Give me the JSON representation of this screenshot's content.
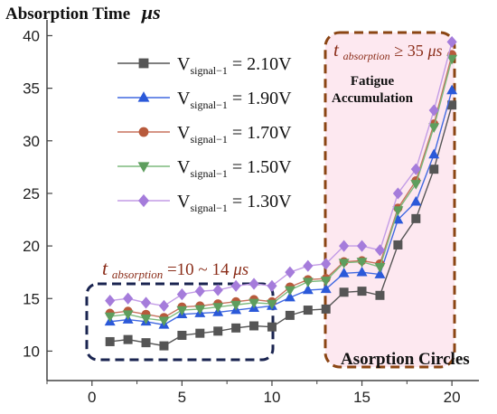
{
  "chart_data": {
    "type": "line",
    "title": "",
    "ylabel": "Absorption Time",
    "ylabel_unit": "μs",
    "xlabel": "Asorption Circles",
    "xlim": [
      -2.5,
      21.5
    ],
    "ylim": [
      7.2,
      41.5
    ],
    "xticks": [
      0,
      5,
      10,
      15,
      20
    ],
    "yticks": [
      10,
      15,
      20,
      25,
      30,
      35,
      40
    ],
    "x": [
      1,
      2,
      3,
      4,
      5,
      6,
      7,
      8,
      9,
      10,
      11,
      12,
      13,
      14,
      15,
      16,
      17,
      18,
      19,
      20
    ],
    "legend_position": "top-left",
    "series": [
      {
        "name": "V",
        "name_sub": "signal−1",
        "name_value": " = 2.10V",
        "color": "#555555",
        "fill": "#555555",
        "marker": "square",
        "values": [
          10.9,
          11.1,
          10.8,
          10.5,
          11.5,
          11.7,
          11.9,
          12.2,
          12.4,
          12.3,
          13.4,
          13.9,
          14.0,
          15.6,
          15.7,
          15.3,
          20.1,
          22.6,
          27.3,
          33.4
        ]
      },
      {
        "name": "V",
        "name_sub": "signal−1",
        "name_value": " = 1.90V",
        "color": "#4169e1",
        "fill": "#2b59d9",
        "marker": "triangle",
        "values": [
          12.8,
          13.0,
          12.8,
          12.5,
          13.5,
          13.6,
          13.7,
          13.9,
          14.1,
          14.3,
          15.1,
          15.8,
          15.9,
          17.4,
          17.5,
          17.3,
          22.5,
          24.2,
          28.7,
          34.8
        ]
      },
      {
        "name": "V",
        "name_sub": "signal−1",
        "name_value": " = 1.70V",
        "color": "#c8725e",
        "fill": "#b85a3c",
        "marker": "circle",
        "values": [
          13.6,
          13.8,
          13.5,
          13.2,
          14.2,
          14.3,
          14.5,
          14.7,
          14.9,
          14.7,
          16.1,
          16.8,
          16.9,
          18.5,
          18.6,
          18.3,
          23.6,
          26.2,
          31.6,
          38.2
        ]
      },
      {
        "name": "V",
        "name_sub": "signal−1",
        "name_value": " = 1.50V",
        "color": "#7dba7d",
        "fill": "#5e9e5e",
        "marker": "triangle-down",
        "values": [
          13.3,
          13.5,
          13.1,
          12.9,
          13.9,
          14.0,
          14.2,
          14.4,
          14.6,
          14.5,
          15.8,
          16.6,
          16.7,
          18.4,
          18.5,
          18.0,
          23.4,
          25.9,
          31.3,
          37.8
        ]
      },
      {
        "name": "V",
        "name_sub": "signal−1",
        "name_value": " = 1.30V",
        "color": "#c39ce6",
        "fill": "#a57cdb",
        "marker": "diamond",
        "values": [
          14.8,
          15.0,
          14.6,
          14.3,
          15.4,
          15.7,
          15.8,
          16.2,
          16.4,
          16.2,
          17.5,
          18.1,
          18.3,
          20.0,
          20.0,
          19.6,
          25.0,
          27.3,
          32.9,
          39.4
        ]
      }
    ],
    "annotations": {
      "low_label_t": "t",
      "low_label_sub": "absorption",
      "low_label_value": " =10 ~ 14",
      "low_label_unit": "μs",
      "high_label_t": "t",
      "high_label_sub": "absorption",
      "high_label_value": " ≥ 35",
      "high_label_unit": "μs",
      "fatigue_line1": "Fatigue",
      "fatigue_line2": "Accumulation"
    },
    "colors": {
      "low_box": "#1a2450",
      "high_box": "#8b4513",
      "high_box_fill": "#fde8f0",
      "annot_red": "#8b2e1a"
    }
  }
}
